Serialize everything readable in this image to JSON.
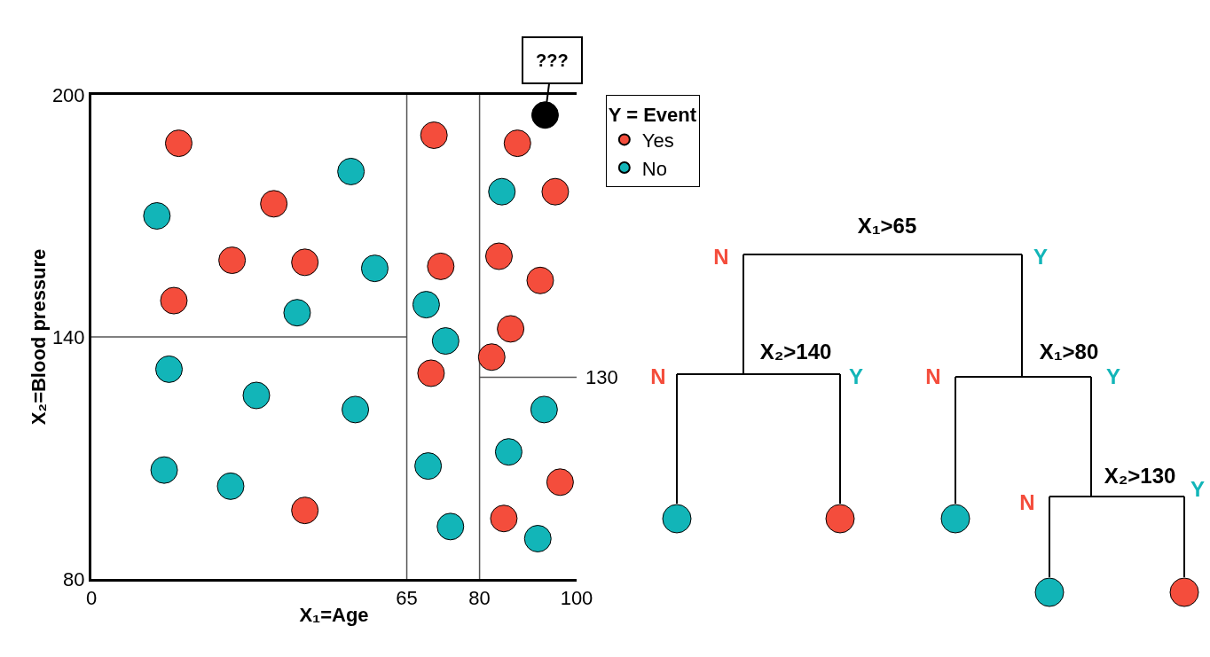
{
  "chart_data": [
    {
      "type": "scatter",
      "xlabel": "X₁=Age",
      "ylabel": "X₂=Blood pressure",
      "legend_title": "Y = Event",
      "xlim": [
        0,
        100
      ],
      "ylim": [
        80,
        200
      ],
      "xticks": [
        0,
        65,
        80,
        100
      ],
      "yticks": [
        80,
        140,
        200
      ],
      "grid": false,
      "legend": "top right",
      "marker": "circle",
      "series": [
        {
          "name": "Yes",
          "color": "#f44d3c",
          "x": [
            18,
            37.6,
            29,
            44,
            17,
            44,
            70.6,
            72,
            70,
            87.8,
            95.6,
            84,
            92.5,
            86.4,
            82.5,
            96.6,
            85
          ],
          "values": [
            188,
            173,
            159,
            158.5,
            149,
            97,
            190,
            157.5,
            131,
            188,
            176,
            160,
            154,
            142,
            135,
            104,
            95
          ]
        },
        {
          "name": "No",
          "color": "#12b5b8",
          "x": [
            53.5,
            13.5,
            58.4,
            42.4,
            16,
            34,
            54.4,
            15,
            28.7,
            69,
            73,
            69.4,
            74,
            84.6,
            93.3,
            86,
            92
          ],
          "values": [
            181,
            170,
            157,
            146,
            132,
            125.5,
            122,
            107,
            103,
            148,
            139,
            108,
            93,
            176,
            122,
            111.5,
            90
          ]
        },
        {
          "color": "#000000",
          "x": [
            93.5
          ],
          "values": [
            195
          ]
        },
        {
          "type": "line",
          "marker": "none",
          "color": "#555555",
          "x": [
            65,
            65
          ],
          "values": [
            80,
            200
          ]
        },
        {
          "type": "line",
          "marker": "none",
          "color": "#555555",
          "x": [
            80,
            80
          ],
          "values": [
            80,
            200
          ]
        },
        {
          "type": "line",
          "marker": "none",
          "color": "#555555",
          "x": [
            0,
            65
          ],
          "values": [
            140,
            140
          ]
        },
        {
          "type": "line",
          "marker": "none",
          "color": "#555555",
          "x": [
            80,
            100
          ],
          "values": [
            130,
            130
          ]
        }
      ],
      "annotations": [
        {
          "text": "???",
          "x": 93.5,
          "y": 195
        },
        {
          "text": "130",
          "x": 100,
          "y": 130
        }
      ]
    },
    {
      "type": "other",
      "annotations": [
        "X₁>65",
        "N",
        "Y",
        "X₂>140",
        "N",
        "Y",
        "X₁>80",
        "N",
        "Y",
        "X₂>130",
        "N",
        "Y"
      ]
    }
  ]
}
